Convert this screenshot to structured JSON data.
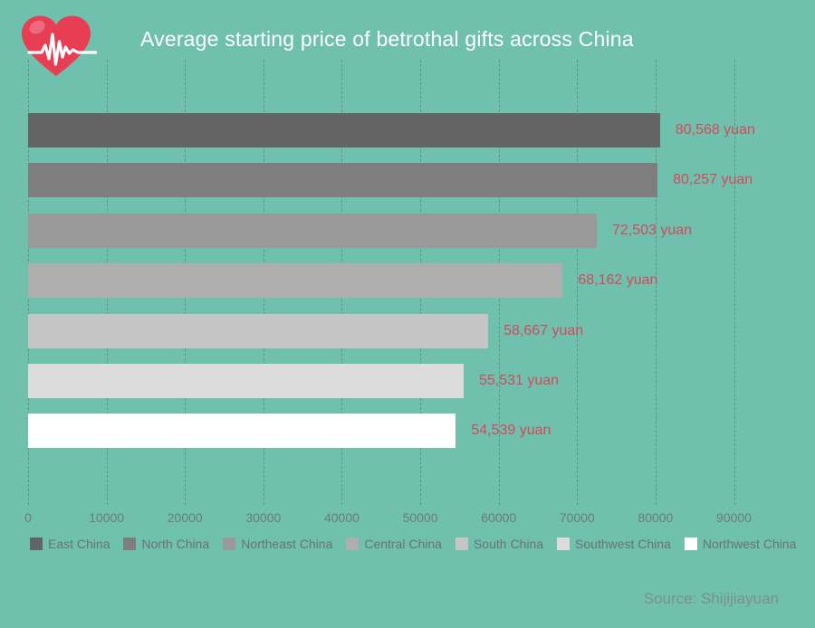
{
  "page": {
    "background_color": "#6fc1ad",
    "source": "Source: Shijijiayuan",
    "source_color": "#7f8f88"
  },
  "icon": {
    "name": "heart-with-pulse-line",
    "heart_color": "#e83e54",
    "highlight_color": "#ee697d",
    "pulse_line_color": "#ffffff"
  },
  "chart_data": {
    "type": "bar",
    "orientation": "horizontal",
    "title": "Average starting price of betrothal gifts across China",
    "title_color": "#ffffff",
    "categories": [
      "East China",
      "North China",
      "Northeast China",
      "Central China",
      "South China",
      "Southwest China",
      "Northwest China"
    ],
    "values": [
      80568,
      80257,
      72503,
      68162,
      58667,
      55531,
      54539
    ],
    "value_labels": [
      "80,568 yuan",
      "80,257 yuan",
      "72,503 yuan",
      "68,162 yuan",
      "58,667 yuan",
      "55,531 yuan",
      "54,539 yuan"
    ],
    "bar_colors": [
      "#646464",
      "#7e7e7e",
      "#999999",
      "#aeaeae",
      "#c5c5c5",
      "#dcdcdc",
      "#ffffff"
    ],
    "value_label_color": "#d6495c",
    "x_ticks": [
      0,
      10000,
      20000,
      30000,
      40000,
      50000,
      60000,
      70000,
      80000,
      90000
    ],
    "xlim": [
      0,
      90000
    ],
    "grid": "vertical-dashed",
    "axis_text_color": "#6d7c75",
    "legend_text_color": "#6a736f",
    "legend_position": "bottom",
    "unit": "yuan"
  }
}
